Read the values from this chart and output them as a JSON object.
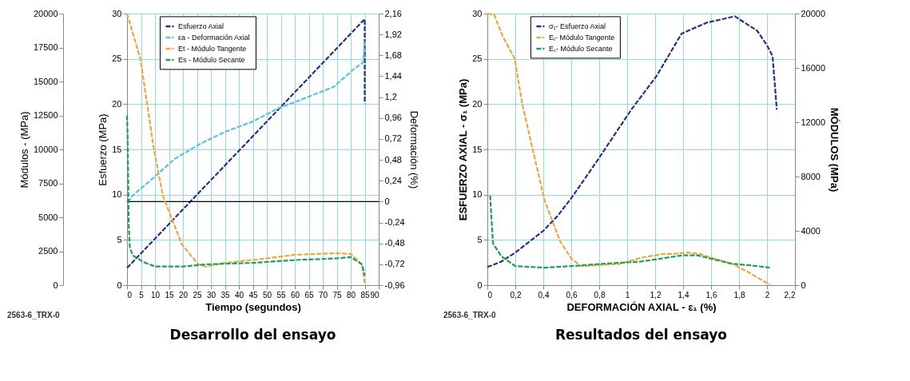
{
  "chart_data": [
    {
      "type": "line",
      "title": "Desarrollo del ensayo",
      "xlabel": "Tiempo (segundos)",
      "ylabel": "Esfuerzo (MPa)",
      "y2label": "Deformación (%)",
      "y3label": "Módulos - (MPa)",
      "xlim": [
        0,
        90
      ],
      "xticks": [
        0,
        5,
        10,
        15,
        20,
        25,
        30,
        35,
        40,
        45,
        50,
        55,
        60,
        65,
        70,
        75,
        80,
        85,
        90
      ],
      "ylim": [
        0,
        30
      ],
      "yticks": [
        0,
        5,
        10,
        15,
        20,
        25,
        30
      ],
      "y2lim": [
        -0.96,
        2.16
      ],
      "y2ticks": [
        {
          "value": -0.96,
          "label": "-0,96"
        },
        {
          "value": -0.72,
          "label": "-0,72"
        },
        {
          "value": -0.48,
          "label": "-0,48"
        },
        {
          "value": -0.24,
          "label": "-0,24"
        },
        0,
        {
          "value": 0.24,
          "label": "0,24"
        },
        {
          "value": 0.48,
          "label": "0,48"
        },
        {
          "value": 0.72,
          "label": "0,72"
        },
        {
          "value": 0.96,
          "label": "0,96"
        },
        {
          "value": 1.2,
          "label": "1,2"
        },
        {
          "value": 1.44,
          "label": "1,44"
        },
        {
          "value": 1.68,
          "label": "1,68"
        },
        {
          "value": 1.92,
          "label": "1,92"
        },
        {
          "value": 2.16,
          "label": "2,16"
        }
      ],
      "y3lim": [
        0,
        20000
      ],
      "y3ticks": [
        0,
        2500,
        5000,
        7500,
        10000,
        12500,
        15000,
        17500,
        20000
      ],
      "grid": true,
      "legend": "top",
      "line_style": "dashed",
      "ref_lines": [
        {
          "axis": "y2",
          "value": 0,
          "color": "#000000"
        }
      ],
      "annotations": [
        "2563-6_TRX-0"
      ],
      "series": [
        {
          "name": "Esfuerzo Axial",
          "color": "#2b2f8c",
          "x": [
            0,
            85,
            85
          ],
          "values": [
            1.9,
            29.4,
            20.1
          ]
        },
        {
          "name": "εa - Deformación Axial",
          "color": "#56c3e6",
          "axis": "y2",
          "x": [
            0,
            1,
            2,
            9,
            17,
            26.5,
            35,
            45,
            54,
            63,
            74,
            81,
            84.5,
            85
          ],
          "values": [
            0,
            0.02,
            0.07,
            0.26,
            0.49,
            0.67,
            0.8,
            0.92,
            1.07,
            1.18,
            1.32,
            1.52,
            1.6,
            1.84
          ]
        },
        {
          "name": "Et - Módulo Tangente",
          "color": "#f2a541",
          "axis": "y3",
          "x": [
            0,
            4.8,
            9.4,
            12.8,
            16.2,
            19.6,
            25.5,
            28,
            35,
            50,
            60,
            75,
            80,
            84,
            85
          ],
          "values": [
            20000,
            16650,
            10260,
            6600,
            4800,
            3000,
            1530,
            1370,
            1640,
            1970,
            2240,
            2350,
            2300,
            1530,
            160
          ]
        },
        {
          "name": "Es - Módulo Secante",
          "color": "#1f9e5a",
          "axis": "y3",
          "x": [
            0,
            0.2,
            0.4,
            0.6,
            1,
            2,
            6,
            10,
            20,
            28,
            45,
            60,
            75,
            80,
            84,
            85
          ],
          "values": [
            12500,
            11000,
            8000,
            4500,
            2800,
            2200,
            1690,
            1370,
            1370,
            1530,
            1640,
            1850,
            1970,
            2070,
            1530,
            700
          ]
        }
      ]
    },
    {
      "type": "line",
      "title": "Resultados del ensayo",
      "xlabel": "DEFORMACIÓN AXIAL - ε₁ (%)",
      "ylabel": "ESFUERZO AXIAL - σ₁ (MPa)",
      "y2label": "MÓDULOS (MPa)",
      "xlim": [
        0,
        2.2
      ],
      "xticks": [
        0,
        {
          "value": 0.2,
          "label": "0,2"
        },
        {
          "value": 0.4,
          "label": "0,4"
        },
        {
          "value": 0.6,
          "label": "0,6"
        },
        {
          "value": 0.8,
          "label": "0,8"
        },
        1,
        {
          "value": 1.2,
          "label": "1,2"
        },
        {
          "value": 1.4,
          "label": "1,4"
        },
        {
          "value": 1.6,
          "label": "1,6"
        },
        {
          "value": 1.8,
          "label": "1,8"
        },
        2,
        {
          "value": 2.2,
          "label": "2,2"
        }
      ],
      "ylim": [
        0,
        30
      ],
      "yticks": [
        0,
        5,
        10,
        15,
        20,
        25,
        30
      ],
      "y2lim": [
        0,
        20000
      ],
      "y2ticks": [
        0,
        4000,
        8000,
        12000,
        16000,
        20000
      ],
      "grid": true,
      "legend": "top left",
      "line_style": "dashed",
      "annotations": [
        "2563-6_TRX-0"
      ],
      "series": [
        {
          "name": "σ₁- Esfuerzo Axial",
          "color": "#2b2f8c",
          "x": [
            0,
            0.1,
            0.2,
            0.3,
            0.4,
            0.5,
            0.6,
            0.775,
            1.03,
            1.21,
            1.39,
            1.57,
            1.77,
            1.93,
            2.0,
            2.04,
            2.07
          ],
          "values": [
            2,
            2.6,
            3.6,
            4.8,
            6,
            7.6,
            9.6,
            13.5,
            19.4,
            23.1,
            27.8,
            29,
            29.7,
            28.1,
            26.5,
            25.3,
            19.4
          ]
        },
        {
          "name": "Eₜ- Módulo Tangente",
          "color": "#f2a541",
          "axis": "y2",
          "x": [
            0,
            0.05,
            0.108,
            0.195,
            0.25,
            0.325,
            0.41,
            0.52,
            0.6,
            0.67,
            0.95,
            1.1,
            1.26,
            1.33,
            1.43,
            1.52,
            1.6,
            1.75,
            1.86,
            1.95,
            2.02
          ],
          "values": [
            20000,
            19900,
            18370,
            16690,
            13330,
            9970,
            6220,
            3250,
            1960,
            1400,
            1570,
            2020,
            2300,
            2300,
            2400,
            2300,
            2020,
            1570,
            1000,
            450,
            60
          ]
        },
        {
          "name": "Eₛ- Módulo Secante",
          "color": "#1f9e5a",
          "axis": "y2",
          "x": [
            0.02,
            0.04,
            0.1,
            0.2,
            0.41,
            0.6,
            0.82,
            1.1,
            1.4,
            1.5,
            1.75,
            1.88,
            2.02
          ],
          "values": [
            6600,
            3080,
            2130,
            1400,
            1290,
            1400,
            1570,
            1740,
            2200,
            2200,
            1570,
            1460,
            1290
          ]
        }
      ]
    }
  ]
}
